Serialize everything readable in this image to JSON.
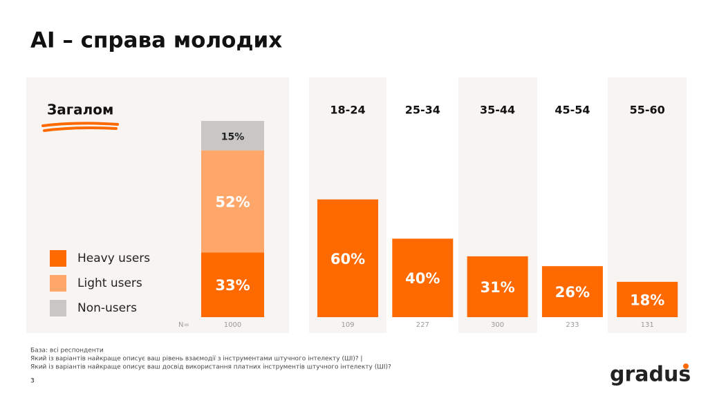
{
  "title": "AI – справа молодих",
  "chart_data": [
    {
      "type": "stacked_bar",
      "title": "Загалом",
      "categories": [
        null
      ],
      "series": [
        {
          "name": "Heavy users",
          "color": "#ff6a00",
          "values": [
            33
          ],
          "value_labels": [
            "33%"
          ]
        },
        {
          "name": "Light users",
          "color": "#ffa76b",
          "values": [
            52
          ],
          "value_labels": [
            "52%"
          ]
        },
        {
          "name": "Non-users",
          "color": "#c9c7c5",
          "values": [
            15
          ],
          "value_labels": [
            "15%"
          ]
        }
      ],
      "n_label": "N=",
      "n": [
        1000
      ]
    },
    {
      "type": "bar",
      "categories": [
        "18-24",
        "25-34",
        "35-44",
        "45-54",
        "55-60"
      ],
      "values": [
        60,
        40,
        31,
        26,
        18
      ],
      "value_labels": [
        "60%",
        "40%",
        "31%",
        "26%",
        "18%"
      ],
      "color": "#ff6a00",
      "n": [
        109,
        227,
        300,
        233,
        131
      ]
    }
  ],
  "footnotes": [
    "База: всі респонденти",
    "Який із варіантів найкраще описує ваш рівень взаємодії з інструментами штучного інтелекту (ШІ)? |",
    "Який із варіантів найкраще описує ваш досвід використання платних інструментів штучного інтелекту (ШІ)?"
  ],
  "page_number": "3",
  "logo": "gradus"
}
